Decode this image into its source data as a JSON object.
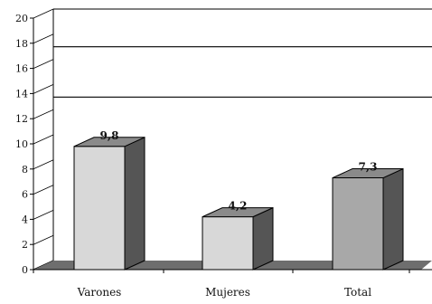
{
  "chart_data": {
    "type": "bar",
    "style": "3d",
    "categories": [
      "Varones",
      "Mujeres",
      "Total"
    ],
    "values": [
      9.8,
      4.2,
      7.3
    ],
    "data_labels": [
      "9,8",
      "4,2",
      "7,3"
    ],
    "title": "",
    "xlabel": "",
    "ylabel": "",
    "ylim": [
      0,
      20
    ],
    "yticks": [
      "0",
      "2",
      "4",
      "6",
      "8",
      "10",
      "12",
      "14",
      "16",
      "18",
      "20"
    ],
    "grid_lines": [
      13,
      17
    ],
    "legend": "none",
    "colors": {
      "bars": [
        "#d8d8d8",
        "#d8d8d8",
        "#a8a8a8"
      ],
      "bar_side": "#555555",
      "bar_top": "#8a8a8a",
      "floor": "#6e6e6e"
    }
  }
}
